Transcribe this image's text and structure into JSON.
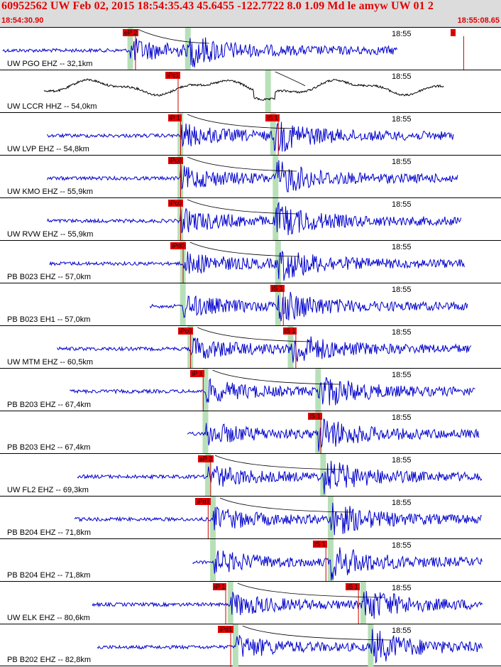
{
  "header": {
    "title": "60952562 UW Feb 02, 2015 18:54:35.43   45.6455 -122.7722  8.0 1.09 Md le amyw UW 01   2",
    "start_time": "18:54:30.90",
    "end_time": "18:55:08.65"
  },
  "colors": {
    "header_bg": "#dcdcdc",
    "header_text": "#e00000",
    "trace": "#0000cc",
    "trace_broadband": "#000000",
    "pick_box": "#e00000",
    "pick_window": "#b8e0b8",
    "pick_line": "#cc0000"
  },
  "panels": [
    {
      "label": "UW PGO EHZ -- 32,1km",
      "time": "18:55",
      "type": "short",
      "picks": [
        {
          "text": "eP 2",
          "at": 0.245
        },
        {
          "text": "-",
          "at": 0.9
        }
      ],
      "green": [
        0.26,
        0.375
      ]
    },
    {
      "label": "UW LCCR HHZ -- 54,0km",
      "time": "18:55",
      "type": "broadband",
      "picks": [
        {
          "text": "iPc1",
          "at": 0.33
        }
      ],
      "green": [
        0.535
      ]
    },
    {
      "label": "UW LVP EHZ -- 54,8km",
      "time": "18:55",
      "type": "short",
      "picks": [
        {
          "text": "iP 1",
          "at": 0.335
        },
        {
          "text": "iS 1",
          "at": 0.53
        }
      ],
      "green": [
        0.36,
        0.545
      ]
    },
    {
      "label": "UW KMO EHZ -- 55,9km",
      "time": "18:55",
      "type": "short",
      "picks": [
        {
          "text": "iPc0",
          "at": 0.335
        }
      ],
      "green": [
        0.36,
        0.55
      ]
    },
    {
      "label": "UW RVW EHZ -- 55,9km",
      "time": "18:55",
      "type": "short",
      "picks": [
        {
          "text": "iPc0",
          "at": 0.335
        }
      ],
      "green": [
        0.36,
        0.55
      ]
    },
    {
      "label": "PB B023 EHZ -- 57,0km",
      "time": "18:55",
      "type": "short",
      "picks": [
        {
          "text": "iPd0",
          "at": 0.34
        }
      ],
      "green": [
        0.365,
        0.555
      ]
    },
    {
      "label": "PB B023 EH1 -- 57,0km",
      "time": "18:55",
      "type": "short",
      "picks": [
        {
          "text": "iS 1",
          "at": 0.54
        }
      ],
      "green": [
        0.365,
        0.555
      ]
    },
    {
      "label": "UW MTM EHZ -- 60,5km",
      "time": "18:55",
      "type": "short",
      "picks": [
        {
          "text": "iPc0",
          "at": 0.355
        },
        {
          "text": "iS 1",
          "at": 0.565
        }
      ],
      "green": [
        0.38,
        0.58
      ]
    },
    {
      "label": "PB B203 EHZ -- 67,4km",
      "time": "18:55",
      "type": "short",
      "picks": [
        {
          "text": "iP 1",
          "at": 0.38
        }
      ],
      "green": [
        0.41,
        0.635
      ]
    },
    {
      "label": "PB B203 EH2 -- 67,4km",
      "time": "18:55",
      "type": "short",
      "picks": [
        {
          "text": "iS 1",
          "at": 0.615
        }
      ],
      "green": [
        0.41,
        0.635
      ]
    },
    {
      "label": "UW FL2 EHZ -- 69,3km",
      "time": "18:55",
      "type": "short",
      "picks": [
        {
          "text": "eP 2",
          "at": 0.395
        }
      ],
      "green": [
        0.415,
        0.645
      ]
    },
    {
      "label": "PB B204 EHZ -- 71,8km",
      "time": "18:55",
      "type": "short",
      "picks": [
        {
          "text": "iPd1",
          "at": 0.39
        }
      ],
      "green": [
        0.425,
        0.66
      ]
    },
    {
      "label": "PB B204 EH2 -- 71,8km",
      "time": "18:55",
      "type": "short",
      "picks": [
        {
          "text": "iS 1",
          "at": 0.625
        }
      ],
      "green": [
        0.425,
        0.66
      ]
    },
    {
      "label": "UW ELK EHZ -- 80,6km",
      "time": "18:55",
      "type": "short",
      "picks": [
        {
          "text": "iP 1",
          "at": 0.425
        },
        {
          "text": "iS 1",
          "at": 0.69
        }
      ],
      "green": [
        0.46,
        0.725
      ]
    },
    {
      "label": "PB B202 EHZ -- 82,8km",
      "time": "18:55",
      "type": "short",
      "picks": [
        {
          "text": "iPd1",
          "at": 0.435
        }
      ],
      "green": [
        0.47,
        0.74
      ]
    }
  ]
}
